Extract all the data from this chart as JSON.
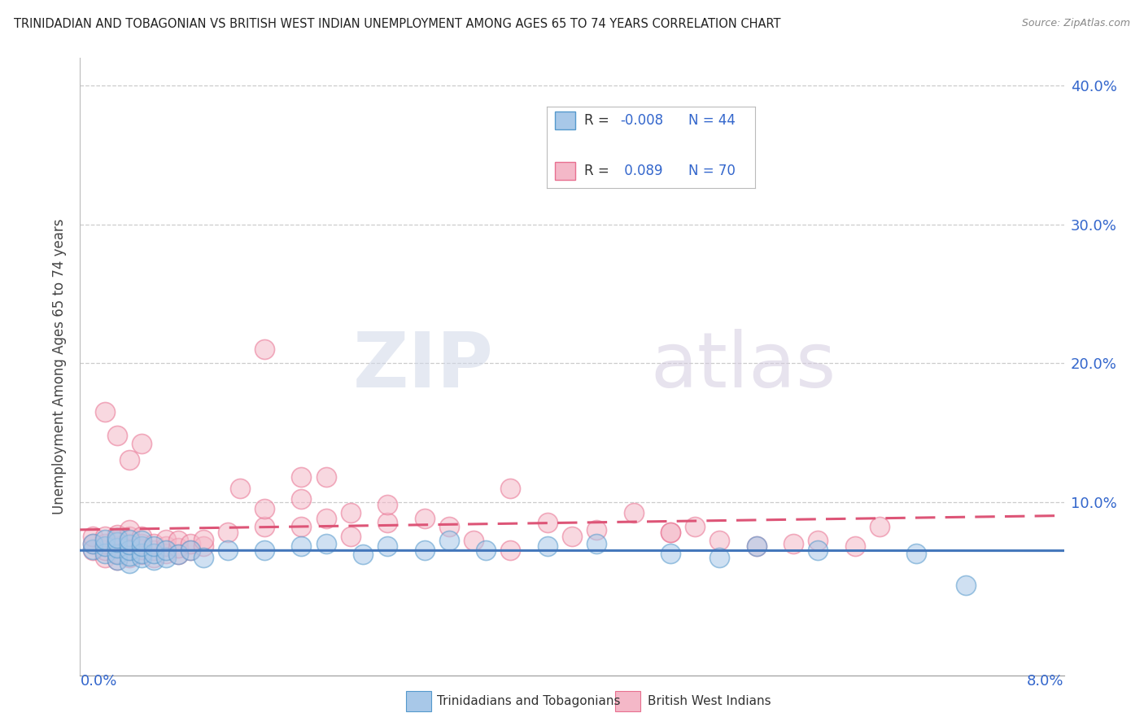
{
  "title": "TRINIDADIAN AND TOBAGONIAN VS BRITISH WEST INDIAN UNEMPLOYMENT AMONG AGES 65 TO 74 YEARS CORRELATION CHART",
  "source": "Source: ZipAtlas.com",
  "ylabel": "Unemployment Among Ages 65 to 74 years",
  "xlim": [
    0.0,
    0.08
  ],
  "ylim": [
    -0.025,
    0.42
  ],
  "ytick_values": [
    0.0,
    0.1,
    0.2,
    0.3,
    0.4
  ],
  "ytick_labels": [
    "",
    "10.0%",
    "20.0%",
    "30.0%",
    "40.0%"
  ],
  "legend_r1": "-0.008",
  "legend_n1": "44",
  "legend_r2": "0.089",
  "legend_n2": "70",
  "color_blue": "#a8c8e8",
  "color_pink": "#f4b8c8",
  "color_blue_edge": "#5599cc",
  "color_pink_edge": "#e87090",
  "color_blue_line": "#4477bb",
  "color_pink_line": "#dd5577",
  "color_rvalue": "#3366cc",
  "background_color": "#ffffff",
  "watermark_zip": "ZIP",
  "watermark_atlas": "atlas",
  "series1_name": "Trinidadians and Tobagonians",
  "series2_name": "British West Indians",
  "blue_x": [
    0.001,
    0.001,
    0.002,
    0.002,
    0.002,
    0.003,
    0.003,
    0.003,
    0.003,
    0.003,
    0.004,
    0.004,
    0.004,
    0.004,
    0.004,
    0.005,
    0.005,
    0.005,
    0.005,
    0.006,
    0.006,
    0.006,
    0.007,
    0.007,
    0.008,
    0.009,
    0.01,
    0.012,
    0.015,
    0.018,
    0.02,
    0.023,
    0.025,
    0.028,
    0.03,
    0.033,
    0.038,
    0.042,
    0.048,
    0.052,
    0.055,
    0.06,
    0.068,
    0.072
  ],
  "blue_y": [
    0.066,
    0.07,
    0.063,
    0.068,
    0.073,
    0.058,
    0.062,
    0.067,
    0.071,
    0.074,
    0.056,
    0.061,
    0.065,
    0.069,
    0.073,
    0.06,
    0.063,
    0.068,
    0.072,
    0.058,
    0.063,
    0.068,
    0.06,
    0.065,
    0.062,
    0.065,
    0.06,
    0.065,
    0.065,
    0.068,
    0.07,
    0.062,
    0.068,
    0.065,
    0.072,
    0.065,
    0.068,
    0.07,
    0.063,
    0.06,
    0.068,
    0.065,
    0.063,
    0.04
  ],
  "pink_x": [
    0.001,
    0.001,
    0.001,
    0.002,
    0.002,
    0.002,
    0.002,
    0.003,
    0.003,
    0.003,
    0.003,
    0.003,
    0.004,
    0.004,
    0.004,
    0.004,
    0.004,
    0.005,
    0.005,
    0.005,
    0.005,
    0.006,
    0.006,
    0.006,
    0.007,
    0.007,
    0.007,
    0.008,
    0.008,
    0.008,
    0.009,
    0.009,
    0.01,
    0.01,
    0.012,
    0.013,
    0.015,
    0.015,
    0.018,
    0.018,
    0.02,
    0.022,
    0.025,
    0.025,
    0.028,
    0.03,
    0.032,
    0.035,
    0.038,
    0.04,
    0.042,
    0.045,
    0.048,
    0.05,
    0.052,
    0.055,
    0.058,
    0.06,
    0.063,
    0.065,
    0.002,
    0.003,
    0.004,
    0.005,
    0.015,
    0.018,
    0.02,
    0.022,
    0.035,
    0.048
  ],
  "pink_y": [
    0.065,
    0.07,
    0.075,
    0.06,
    0.065,
    0.07,
    0.075,
    0.058,
    0.063,
    0.068,
    0.072,
    0.076,
    0.06,
    0.065,
    0.07,
    0.075,
    0.08,
    0.062,
    0.066,
    0.07,
    0.075,
    0.06,
    0.065,
    0.07,
    0.063,
    0.068,
    0.073,
    0.062,
    0.067,
    0.072,
    0.065,
    0.07,
    0.068,
    0.073,
    0.078,
    0.11,
    0.082,
    0.095,
    0.082,
    0.102,
    0.118,
    0.092,
    0.085,
    0.098,
    0.088,
    0.082,
    0.072,
    0.065,
    0.085,
    0.075,
    0.08,
    0.092,
    0.078,
    0.082,
    0.072,
    0.068,
    0.07,
    0.072,
    0.068,
    0.082,
    0.165,
    0.148,
    0.13,
    0.142,
    0.21,
    0.118,
    0.088,
    0.075,
    0.11,
    0.078
  ]
}
